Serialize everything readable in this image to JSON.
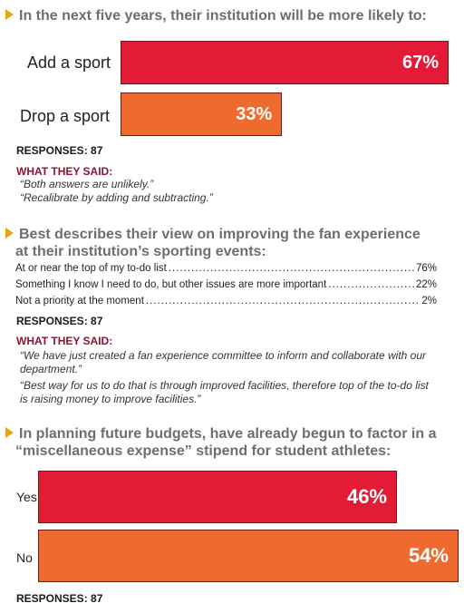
{
  "section1": {
    "title": "In the next five years, their institution will be more likely to:",
    "responses": "RESPONSES: 87",
    "said_heading": "WHAT THEY SAID:",
    "quotes": [
      "“Both answers are unlikely.”",
      "“Recalibrate by adding and subtracting.”"
    ]
  },
  "section2": {
    "title_line1": "Best describes their view on improving the fan experience",
    "title_line2": "at their institution’s sporting events:",
    "responses": "RESPONSES: 87",
    "said_heading": "WHAT THEY SAID:",
    "quotes": [
      "“We have just created a fan experience committee to inform and collaborate with our",
      "department.”",
      "“Best way for us to do that is through improved facilities, therefore top of the to-do list",
      "is raising money to improve facilities.”"
    ]
  },
  "section3": {
    "title_line1": "In planning future budgets, have already begun to factor in a",
    "title_line2": "“miscellaneous expense” stipend for student athletes:",
    "responses": "RESPONSES: 87"
  },
  "colors": {
    "red": "#e31b37",
    "orange": "#ef6a2f",
    "heading": "#6d6e71",
    "accent": "#e8a317",
    "said": "#8a1530"
  },
  "chart_data": [
    {
      "type": "bar",
      "orientation": "horizontal",
      "categories": [
        "Add a sport",
        "Drop a sport"
      ],
      "values": [
        67,
        33
      ],
      "value_labels": [
        "67%",
        "33%"
      ],
      "colors": [
        "#e31b37",
        "#ef6a2f"
      ]
    },
    {
      "type": "table",
      "rows": [
        {
          "label": "At or near the top of my to-do list",
          "value": "76%"
        },
        {
          "label": "Something I know I need to do, but other issues are more important",
          "value": "22%"
        },
        {
          "label": "Not a priority at the moment",
          "value": "2%"
        }
      ]
    },
    {
      "type": "bar",
      "orientation": "horizontal",
      "categories": [
        "Yes",
        "No"
      ],
      "values": [
        46,
        54
      ],
      "value_labels": [
        "46%",
        "54%"
      ],
      "colors": [
        "#e31b37",
        "#ef6a2f"
      ]
    }
  ]
}
